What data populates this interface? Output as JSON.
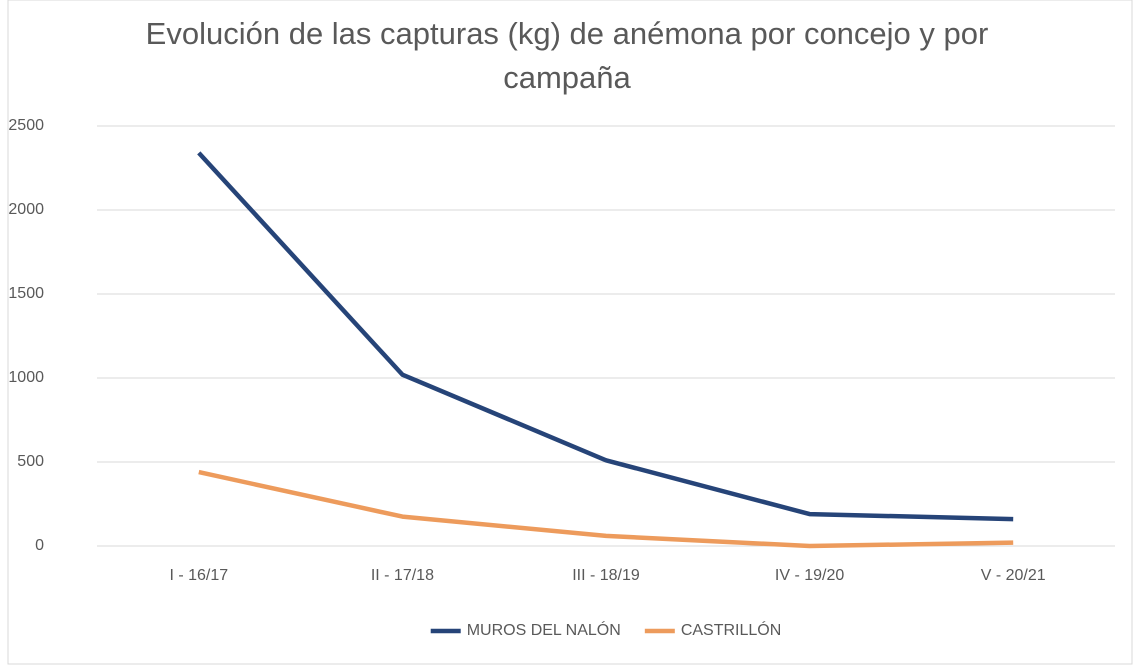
{
  "chart_data": {
    "type": "line",
    "title": "Evolución de las capturas (kg) de anémona por concejo y por campaña",
    "categories": [
      "I - 16/17",
      "II - 17/18",
      "III - 18/19",
      "IV - 19/20",
      "V - 20/21"
    ],
    "series": [
      {
        "name": "MUROS DEL NALÓN",
        "color": "#264478",
        "values": [
          2340,
          1020,
          510,
          190,
          160
        ]
      },
      {
        "name": "CASTRILLÓN",
        "color": "#ed9b5c",
        "values": [
          440,
          175,
          60,
          0,
          20
        ]
      }
    ],
    "ylim": [
      0,
      2500
    ],
    "yticks": [
      0,
      500,
      1000,
      1500,
      2000,
      2500
    ],
    "grid": true,
    "legend": "bottom"
  }
}
